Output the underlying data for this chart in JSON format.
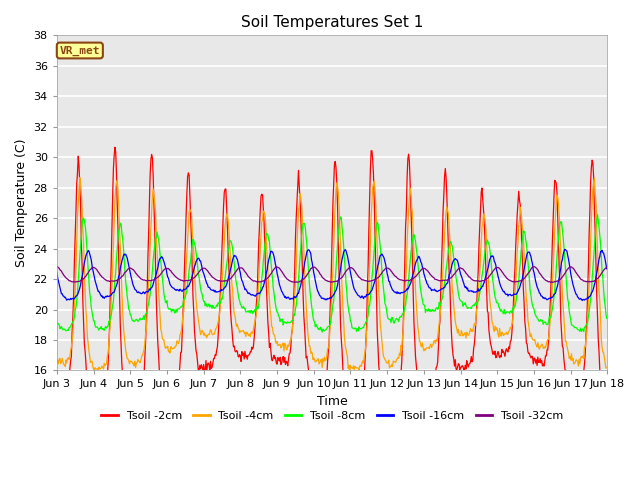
{
  "title": "Soil Temperatures Set 1",
  "xlabel": "Time",
  "ylabel": "Soil Temperature (C)",
  "ylim": [
    16,
    38
  ],
  "yticks": [
    16,
    18,
    20,
    22,
    24,
    26,
    28,
    30,
    32,
    34,
    36,
    38
  ],
  "x_tick_labels": [
    "Jun 3",
    "Jun 4",
    "Jun 5",
    "Jun 6",
    "Jun 7",
    "Jun 8",
    "Jun 9",
    "Jun 10",
    "Jun 11",
    "Jun 12",
    "Jun 13",
    "Jun 14",
    "Jun 15",
    "Jun 16",
    "Jun 17",
    "Jun 18"
  ],
  "legend_labels": [
    "Tsoil -2cm",
    "Tsoil -4cm",
    "Tsoil -8cm",
    "Tsoil -16cm",
    "Tsoil -32cm"
  ],
  "line_colors": [
    "red",
    "orange",
    "lime",
    "blue",
    "purple"
  ],
  "annotation_text": "VR_met",
  "annotation_color": "#8B4513",
  "annotation_bg": "#FFFF99",
  "background_color": "#E8E8E8",
  "grid_color": "white",
  "n_days": 15,
  "n_per_day": 48,
  "base_temp": 22.3,
  "amplitudes": [
    6.8,
    5.0,
    2.9,
    1.35,
    0.45
  ],
  "phase_delays_h": [
    0.0,
    1.2,
    3.5,
    6.5,
    10.0
  ],
  "sharpness": [
    3.0,
    2.5,
    2.0,
    1.5,
    1.0
  ],
  "day_amp_variation": [
    1.5,
    1.2,
    0.8,
    0.3,
    0.05
  ],
  "day_amp_period": 7.0
}
